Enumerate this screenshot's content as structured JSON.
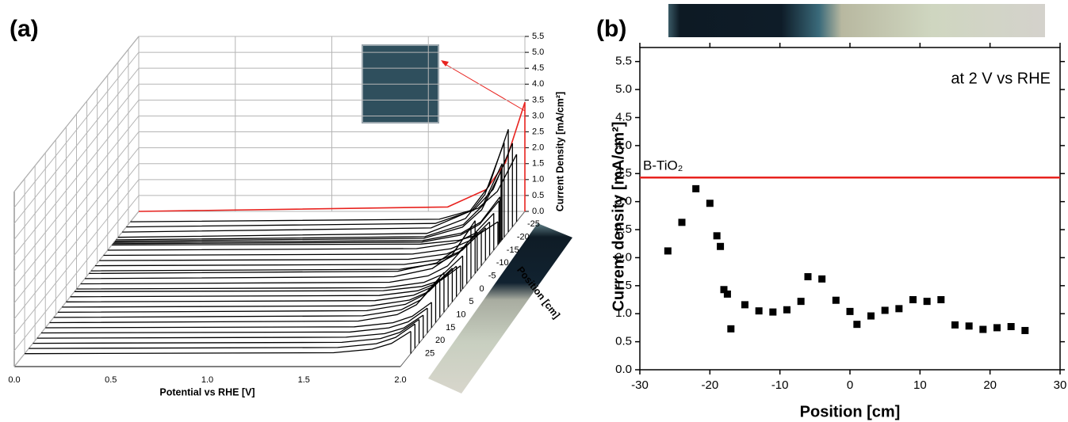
{
  "chart_data": [
    {
      "type": "waterfall3d",
      "panel_label": "(a)",
      "xlabel": "Potential vs RHE [V]",
      "ylabel": "Current Density [mA/cm²]",
      "zlabel": "Position [cm]",
      "xlim": [
        0,
        2
      ],
      "xticks": [
        {
          "value": 0,
          "label": "0.0"
        },
        {
          "value": 0.5,
          "label": "0.5"
        },
        {
          "value": 1,
          "label": "1.0"
        },
        {
          "value": 1.5,
          "label": "1.5"
        },
        {
          "value": 2,
          "label": "2.0"
        }
      ],
      "ylim": [
        0,
        5.5
      ],
      "yticks": [
        {
          "value": 0,
          "label": "0.0"
        },
        {
          "value": 0.5,
          "label": "0.5"
        },
        {
          "value": 1,
          "label": "1.0"
        },
        {
          "value": 1.5,
          "label": "1.5"
        },
        {
          "value": 2,
          "label": "2.0"
        },
        {
          "value": 2.5,
          "label": "2.5"
        },
        {
          "value": 3,
          "label": "3.0"
        },
        {
          "value": 3.5,
          "label": "3.5"
        },
        {
          "value": 4,
          "label": "4.0"
        },
        {
          "value": 4.5,
          "label": "4.5"
        },
        {
          "value": 5,
          "label": "5.0"
        },
        {
          "value": 5.5,
          "label": "5.5"
        }
      ],
      "zlim": [
        -30,
        30
      ],
      "zticks": [
        -25,
        -20,
        -15,
        -10,
        -5,
        0,
        5,
        10,
        15,
        20,
        25
      ],
      "x": [
        0,
        1.6,
        1.8,
        1.9,
        2.0
      ],
      "color": "#000000",
      "reference": {
        "color": "#e8231f",
        "values": [
          0,
          0.14,
          0.69,
          1.54,
          3.43
        ]
      },
      "series": [
        {
          "position": -26,
          "values": [
            0,
            0.08,
            0.42,
            0.95,
            2.12
          ]
        },
        {
          "position": -24,
          "values": [
            0,
            0.11,
            0.53,
            1.18,
            2.63
          ]
        },
        {
          "position": -22,
          "values": [
            0,
            0.13,
            0.65,
            1.45,
            3.23
          ]
        },
        {
          "position": -20,
          "values": [
            0,
            0.12,
            0.59,
            1.34,
            2.97
          ]
        },
        {
          "position": -19,
          "values": [
            0,
            0.1,
            0.48,
            1.08,
            2.39
          ]
        },
        {
          "position": -18.5,
          "values": [
            0,
            0.09,
            0.44,
            0.99,
            2.2
          ]
        },
        {
          "position": -18,
          "values": [
            0,
            0.06,
            0.29,
            0.64,
            1.43
          ]
        },
        {
          "position": -17.5,
          "values": [
            0,
            0.05,
            0.27,
            0.61,
            1.35
          ]
        },
        {
          "position": -17,
          "values": [
            0,
            0.03,
            0.15,
            0.33,
            0.73
          ]
        },
        {
          "position": -15,
          "values": [
            0,
            0.05,
            0.23,
            0.52,
            1.16
          ]
        },
        {
          "position": -13,
          "values": [
            0,
            0.04,
            0.21,
            0.47,
            1.05
          ]
        },
        {
          "position": -11,
          "values": [
            0,
            0.04,
            0.21,
            0.46,
            1.03
          ]
        },
        {
          "position": -9,
          "values": [
            0,
            0.04,
            0.21,
            0.48,
            1.07
          ]
        },
        {
          "position": -7,
          "values": [
            0,
            0.05,
            0.24,
            0.55,
            1.22
          ]
        },
        {
          "position": -6,
          "values": [
            0,
            0.07,
            0.33,
            0.75,
            1.66
          ]
        },
        {
          "position": -4,
          "values": [
            0,
            0.06,
            0.32,
            0.73,
            1.62
          ]
        },
        {
          "position": -2,
          "values": [
            0,
            0.05,
            0.25,
            0.56,
            1.24
          ]
        },
        {
          "position": 0,
          "values": [
            0,
            0.04,
            0.21,
            0.47,
            1.04
          ]
        },
        {
          "position": 1,
          "values": [
            0,
            0.03,
            0.16,
            0.36,
            0.81
          ]
        },
        {
          "position": 3,
          "values": [
            0,
            0.04,
            0.19,
            0.43,
            0.96
          ]
        },
        {
          "position": 5,
          "values": [
            0,
            0.04,
            0.21,
            0.48,
            1.06
          ]
        },
        {
          "position": 7,
          "values": [
            0,
            0.04,
            0.22,
            0.49,
            1.09
          ]
        },
        {
          "position": 9,
          "values": [
            0,
            0.05,
            0.25,
            0.56,
            1.25
          ]
        },
        {
          "position": 11,
          "values": [
            0,
            0.05,
            0.24,
            0.55,
            1.22
          ]
        },
        {
          "position": 13,
          "values": [
            0,
            0.05,
            0.25,
            0.56,
            1.25
          ]
        },
        {
          "position": 15,
          "values": [
            0,
            0.03,
            0.16,
            0.36,
            0.8
          ]
        },
        {
          "position": 17,
          "values": [
            0,
            0.03,
            0.16,
            0.35,
            0.78
          ]
        },
        {
          "position": 19,
          "values": [
            0,
            0.03,
            0.14,
            0.32,
            0.72
          ]
        },
        {
          "position": 21,
          "values": [
            0,
            0.03,
            0.15,
            0.34,
            0.75
          ]
        },
        {
          "position": 23,
          "values": [
            0,
            0.03,
            0.15,
            0.35,
            0.77
          ]
        },
        {
          "position": 25,
          "values": [
            0,
            0.03,
            0.14,
            0.32,
            0.7
          ]
        }
      ]
    },
    {
      "type": "scatter",
      "panel_label": "(b)",
      "xlabel": "Position [cm]",
      "ylabel": "Current density [mA/cm²]",
      "annotation": "at 2 V vs RHE",
      "xlim": [
        -30,
        30
      ],
      "xticks": [
        -30,
        -20,
        -10,
        0,
        10,
        20,
        30
      ],
      "ylim": [
        0,
        5.75
      ],
      "yticks": [
        {
          "value": 0,
          "label": "0.0"
        },
        {
          "value": 0.5,
          "label": "0.5"
        },
        {
          "value": 1,
          "label": "1.0"
        },
        {
          "value": 1.5,
          "label": "1.5"
        },
        {
          "value": 2,
          "label": "2.0"
        },
        {
          "value": 2.5,
          "label": "2.5"
        },
        {
          "value": 3,
          "label": "3.0"
        },
        {
          "value": 3.5,
          "label": "3.5"
        },
        {
          "value": 4,
          "label": "4.0"
        },
        {
          "value": 4.5,
          "label": "4.5"
        },
        {
          "value": 5,
          "label": "5.0"
        },
        {
          "value": 5.5,
          "label": "5.5"
        }
      ],
      "reference": {
        "value": 3.43,
        "label": "B-TiO₂",
        "color": "#e8231f"
      },
      "color": "#000000",
      "x": [
        -26,
        -24,
        -22,
        -20,
        -19,
        -18.5,
        -18,
        -17.5,
        -17,
        -15,
        -13,
        -11,
        -9,
        -7,
        -6,
        -4,
        -2,
        0,
        1,
        3,
        5,
        7,
        9,
        11,
        13,
        15,
        17,
        19,
        21,
        23,
        25
      ],
      "values": [
        2.12,
        2.63,
        3.23,
        2.97,
        2.39,
        2.2,
        1.43,
        1.35,
        0.73,
        1.16,
        1.05,
        1.03,
        1.07,
        1.22,
        1.66,
        1.62,
        1.24,
        1.04,
        0.81,
        0.96,
        1.06,
        1.09,
        1.25,
        1.22,
        1.25,
        0.8,
        0.78,
        0.72,
        0.75,
        0.77,
        0.7
      ]
    }
  ]
}
